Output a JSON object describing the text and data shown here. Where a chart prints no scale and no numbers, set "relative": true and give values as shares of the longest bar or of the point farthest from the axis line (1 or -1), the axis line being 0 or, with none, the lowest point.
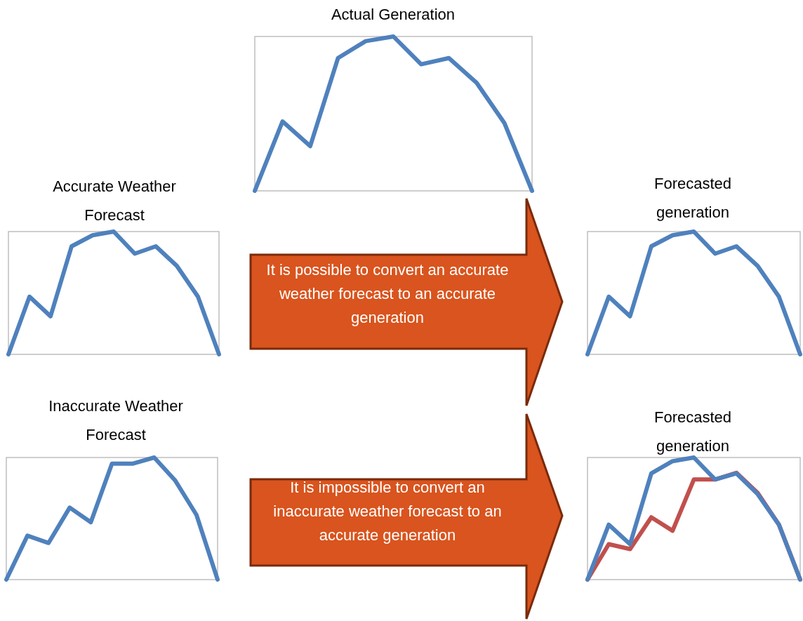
{
  "chart_data": [
    {
      "type": "line",
      "title": "Actual Generation",
      "relative": true,
      "categories": [
        null,
        null,
        null,
        null,
        null,
        null,
        null,
        null,
        null,
        null,
        null
      ],
      "series": [
        {
          "color": "#4f81bd",
          "values": [
            0,
            0.45,
            0.29,
            0.86,
            0.97,
            1,
            0.82,
            0.86,
            0.7,
            0.44,
            0
          ]
        }
      ]
    },
    {
      "type": "line",
      "title": "Accurate Weather Forecast",
      "relative": true,
      "categories": [
        null,
        null,
        null,
        null,
        null,
        null,
        null,
        null,
        null,
        null,
        null
      ],
      "series": [
        {
          "color": "#4f81bd",
          "values": [
            0,
            0.47,
            0.31,
            0.88,
            0.97,
            1,
            0.82,
            0.88,
            0.72,
            0.47,
            0
          ]
        }
      ]
    },
    {
      "type": "line",
      "title": "Forecasted generation",
      "relative": true,
      "categories": [
        null,
        null,
        null,
        null,
        null,
        null,
        null,
        null,
        null,
        null,
        null
      ],
      "series": [
        {
          "color": "#4f81bd",
          "values": [
            0,
            0.47,
            0.31,
            0.88,
            0.97,
            1,
            0.82,
            0.88,
            0.72,
            0.47,
            0
          ]
        }
      ]
    },
    {
      "type": "line",
      "title": "Inaccurate Weather Forecast",
      "relative": true,
      "categories": [
        null,
        null,
        null,
        null,
        null,
        null,
        null,
        null,
        null,
        null,
        null
      ],
      "series": [
        {
          "color": "#4f81bd",
          "values": [
            0,
            0.36,
            0.3,
            0.59,
            0.47,
            0.95,
            0.95,
            1,
            0.81,
            0.53,
            0
          ]
        }
      ]
    },
    {
      "type": "line",
      "title": "Forecasted generation",
      "relative": true,
      "categories": [
        null,
        null,
        null,
        null,
        null,
        null,
        null,
        null,
        null,
        null,
        null
      ],
      "series": [
        {
          "color": "#4f81bd",
          "values": [
            0,
            0.45,
            0.29,
            0.87,
            0.97,
            1,
            0.82,
            0.87,
            0.7,
            0.45,
            0
          ]
        },
        {
          "color": "#c0504d",
          "values": [
            0,
            0.29,
            0.25,
            0.51,
            0.4,
            0.82,
            0.82,
            0.875,
            0.71,
            0.45,
            0
          ]
        }
      ]
    },
    {
      "type": "other",
      "annotations": [
        "It is possible to convert an accurate weather forecast to an accurate generation"
      ]
    },
    {
      "type": "other",
      "annotations": [
        "It is impossible to convert an inaccurate weather forecast to an accurate generation"
      ]
    }
  ]
}
